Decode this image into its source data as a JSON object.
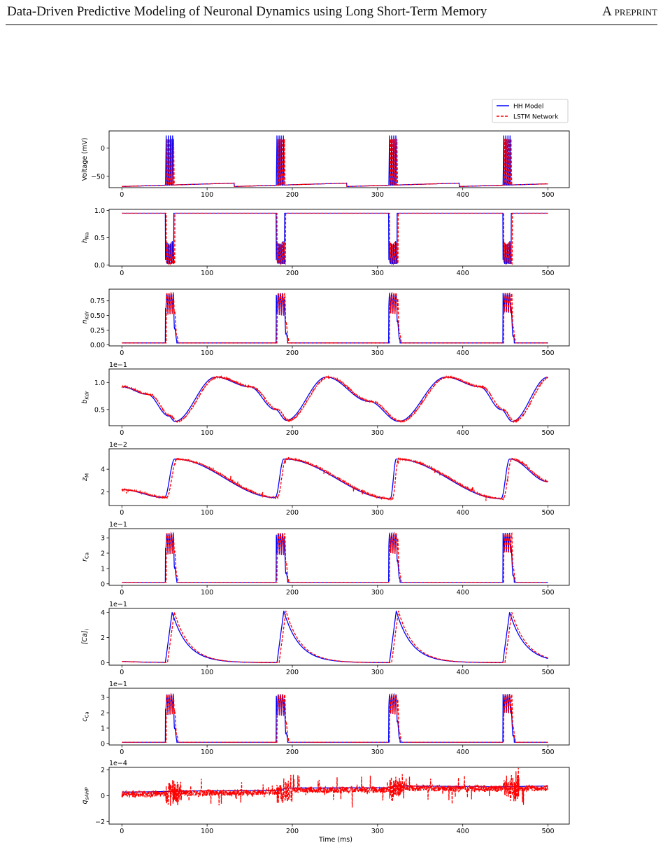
{
  "header": {
    "title": "Data-Driven Predictive Modeling of Neuronal Dynamics using Long Short-Term Memory",
    "tag": "A preprint"
  },
  "legend": {
    "position": "top-right",
    "entries": [
      {
        "label": "HH Model",
        "color": "#0000ff",
        "style": "solid"
      },
      {
        "label": "LSTM Network",
        "color": "#ff0000",
        "style": "dashed"
      }
    ]
  },
  "colors": {
    "hh": "#0000ff",
    "lstm": "#ff0000",
    "axis": "#000000"
  },
  "chart_data": [
    {
      "type": "line",
      "panel": "voltage",
      "ylabel": "Voltage (mV)",
      "ylabel_html": "Voltage (mV)",
      "xlim": [
        -15,
        525
      ],
      "ylim": [
        -70,
        30
      ],
      "yticks": [
        -50,
        0
      ],
      "ytick_labels": [
        "−50",
        "0"
      ],
      "xticks": [
        0,
        100,
        200,
        300,
        400,
        500
      ],
      "scale_text": "",
      "kind": "voltage",
      "series": [
        {
          "name": "HH Model"
        },
        {
          "name": "LSTM Network"
        }
      ],
      "burst_times": [
        [
          52,
          54.5,
          57,
          59.5
        ],
        [
          182,
          184.5,
          187,
          189.5
        ],
        [
          314,
          316.5,
          319,
          321.5
        ],
        [
          448,
          450.5,
          453,
          455.5
        ]
      ],
      "baseline": -68,
      "spike_peak": 22
    },
    {
      "type": "line",
      "panel": "h_Na",
      "ylabel": "h_Na",
      "xlim": [
        -15,
        525
      ],
      "ylim": [
        -0.02,
        1.02
      ],
      "yticks": [
        0,
        0.5,
        1.0
      ],
      "ytick_labels": [
        "0.0",
        "0.5",
        "1.0"
      ],
      "xticks": [
        0,
        100,
        200,
        300,
        400,
        500
      ],
      "scale_text": "",
      "kind": "hna",
      "series": [
        {
          "name": "HH Model"
        },
        {
          "name": "LSTM Network"
        }
      ],
      "burst_times": [
        [
          52,
          54.5,
          57,
          59.5
        ],
        [
          182,
          184.5,
          187,
          189.5
        ],
        [
          314,
          316.5,
          319,
          321.5
        ],
        [
          448,
          450.5,
          453,
          455.5
        ]
      ],
      "rest": 0.95
    },
    {
      "type": "line",
      "panel": "n_Kdr",
      "ylabel": "n_Kdr",
      "xlim": [
        -15,
        525
      ],
      "ylim": [
        -0.02,
        0.95
      ],
      "yticks": [
        0,
        0.25,
        0.5,
        0.75
      ],
      "ytick_labels": [
        "0.00",
        "0.25",
        "0.50",
        "0.75"
      ],
      "xticks": [
        0,
        100,
        200,
        300,
        400,
        500
      ],
      "scale_text": "",
      "kind": "spiky",
      "series": [
        {
          "name": "HH Model"
        },
        {
          "name": "LSTM Network"
        }
      ],
      "burst_times": [
        [
          52,
          54.5,
          57,
          59.5
        ],
        [
          182,
          184.5,
          187,
          189.5
        ],
        [
          314,
          316.5,
          319,
          321.5
        ],
        [
          448,
          450.5,
          453,
          455.5
        ]
      ],
      "rest": 0.03,
      "peak": 0.88
    },
    {
      "type": "line",
      "panel": "b_Kdr",
      "ylabel": "b_Kdr",
      "xlim": [
        -15,
        525
      ],
      "ylim": [
        0.2,
        1.25
      ],
      "yticks": [
        0.5,
        1.0
      ],
      "ytick_labels": [
        "0.5",
        "1.0"
      ],
      "xticks": [
        0,
        100,
        200,
        300,
        400,
        500
      ],
      "scale_text": "1e−1",
      "kind": "bkdr",
      "series": [
        {
          "name": "HH Model"
        },
        {
          "name": "LSTM Network"
        }
      ],
      "burst_times": [
        [
          52,
          54.5,
          57,
          59.5
        ],
        [
          182,
          184.5,
          187,
          189.5
        ],
        [
          314,
          316.5,
          319,
          321.5
        ],
        [
          448,
          450.5,
          453,
          455.5
        ]
      ],
      "points": [
        [
          0,
          0.92
        ],
        [
          30,
          0.78
        ],
        [
          55,
          0.38
        ],
        [
          62,
          0.28
        ],
        [
          110,
          1.1
        ],
        [
          150,
          0.92
        ],
        [
          180,
          0.5
        ],
        [
          193,
          0.3
        ],
        [
          240,
          1.1
        ],
        [
          290,
          0.65
        ],
        [
          325,
          0.28
        ],
        [
          380,
          1.1
        ],
        [
          420,
          0.92
        ],
        [
          445,
          0.5
        ],
        [
          458,
          0.28
        ],
        [
          500,
          1.1
        ]
      ]
    },
    {
      "type": "line",
      "panel": "z_M",
      "ylabel": "z_M",
      "xlim": [
        -15,
        525
      ],
      "ylim": [
        0.8,
        5.8
      ],
      "yticks": [
        2,
        4
      ],
      "ytick_labels": [
        "2",
        "4"
      ],
      "xticks": [
        0,
        100,
        200,
        300,
        400,
        500
      ],
      "scale_text": "1e−2",
      "kind": "zm",
      "series": [
        {
          "name": "HH Model"
        },
        {
          "name": "LSTM Network"
        }
      ],
      "burst_times": [
        [
          52,
          54.5,
          57,
          59.5
        ],
        [
          182,
          184.5,
          187,
          189.5
        ],
        [
          314,
          316.5,
          319,
          321.5
        ],
        [
          448,
          450.5,
          453,
          455.5
        ]
      ],
      "points": [
        [
          0,
          2.2
        ],
        [
          50,
          1.5
        ],
        [
          62,
          4.9
        ],
        [
          180,
          1.5
        ],
        [
          190,
          4.9
        ],
        [
          315,
          1.4
        ],
        [
          322,
          4.9
        ],
        [
          445,
          1.4
        ],
        [
          455,
          4.9
        ],
        [
          500,
          2.9
        ]
      ]
    },
    {
      "type": "line",
      "panel": "r_Ca",
      "ylabel": "r_Ca",
      "xlim": [
        -15,
        525
      ],
      "ylim": [
        -0.1,
        3.6
      ],
      "yticks": [
        0,
        1,
        2,
        3
      ],
      "ytick_labels": [
        "0",
        "1",
        "2",
        "3"
      ],
      "xticks": [
        0,
        100,
        200,
        300,
        400,
        500
      ],
      "scale_text": "1e−1",
      "kind": "spiky",
      "series": [
        {
          "name": "HH Model"
        },
        {
          "name": "LSTM Network"
        }
      ],
      "burst_times": [
        [
          52,
          54.5,
          57,
          59.5
        ],
        [
          182,
          184.5,
          187,
          189.5
        ],
        [
          314,
          316.5,
          319,
          321.5
        ],
        [
          448,
          450.5,
          453,
          455.5
        ]
      ],
      "rest": 0.1,
      "peak": 3.3
    },
    {
      "type": "line",
      "panel": "Ca_i",
      "ylabel": "[Ca]_i",
      "xlim": [
        -15,
        525
      ],
      "ylim": [
        -0.2,
        4.3
      ],
      "yticks": [
        0,
        2,
        4
      ],
      "ytick_labels": [
        "0",
        "2",
        "4"
      ],
      "xticks": [
        0,
        100,
        200,
        300,
        400,
        500
      ],
      "scale_text": "1e−1",
      "kind": "cai",
      "series": [
        {
          "name": "HH Model"
        },
        {
          "name": "LSTM Network"
        }
      ],
      "burst_times": [
        [
          52,
          54.5,
          57,
          59.5
        ],
        [
          182,
          184.5,
          187,
          189.5
        ],
        [
          314,
          316.5,
          319,
          321.5
        ],
        [
          448,
          450.5,
          453,
          455.5
        ]
      ],
      "peaks": [
        [
          59,
          4.0
        ],
        [
          190,
          4.1
        ],
        [
          322,
          4.1
        ],
        [
          455,
          4.0
        ]
      ]
    },
    {
      "type": "line",
      "panel": "c_Ca",
      "ylabel": "c_Ca",
      "xlim": [
        -15,
        525
      ],
      "ylim": [
        -0.1,
        3.6
      ],
      "yticks": [
        0,
        1,
        2,
        3
      ],
      "ytick_labels": [
        "0",
        "1",
        "2",
        "3"
      ],
      "xticks": [
        0,
        100,
        200,
        300,
        400,
        500
      ],
      "scale_text": "1e−1",
      "kind": "cca",
      "series": [
        {
          "name": "HH Model"
        },
        {
          "name": "LSTM Network"
        }
      ],
      "burst_times": [
        [
          52,
          54.5,
          57,
          59.5
        ],
        [
          182,
          184.5,
          187,
          189.5
        ],
        [
          314,
          316.5,
          319,
          321.5
        ],
        [
          448,
          450.5,
          453,
          455.5
        ]
      ],
      "rest": 0.08,
      "peak": 3.2
    },
    {
      "type": "line",
      "panel": "q_sAHP",
      "ylabel": "q_sAHP",
      "xlabel": "Time (ms)",
      "xlim": [
        -15,
        525
      ],
      "ylim": [
        -2.2,
        2.2
      ],
      "yticks": [
        -2,
        0,
        2
      ],
      "ytick_labels": [
        "−2",
        "0",
        "2"
      ],
      "xticks": [
        0,
        100,
        200,
        300,
        400,
        500
      ],
      "scale_text": "1e−4",
      "kind": "qsahp",
      "series": [
        {
          "name": "HH Model"
        },
        {
          "name": "LSTM Network"
        }
      ],
      "burst_times": [
        [
          52,
          54.5,
          57,
          59.5
        ],
        [
          182,
          184.5,
          187,
          189.5
        ],
        [
          314,
          316.5,
          319,
          321.5
        ],
        [
          448,
          450.5,
          453,
          455.5
        ]
      ],
      "points": [
        [
          0,
          0.28
        ],
        [
          100,
          0.38
        ],
        [
          185,
          0.42
        ],
        [
          195,
          0.6
        ],
        [
          310,
          0.62
        ],
        [
          325,
          0.75
        ],
        [
          450,
          0.7
        ],
        [
          500,
          0.75
        ]
      ]
    }
  ]
}
